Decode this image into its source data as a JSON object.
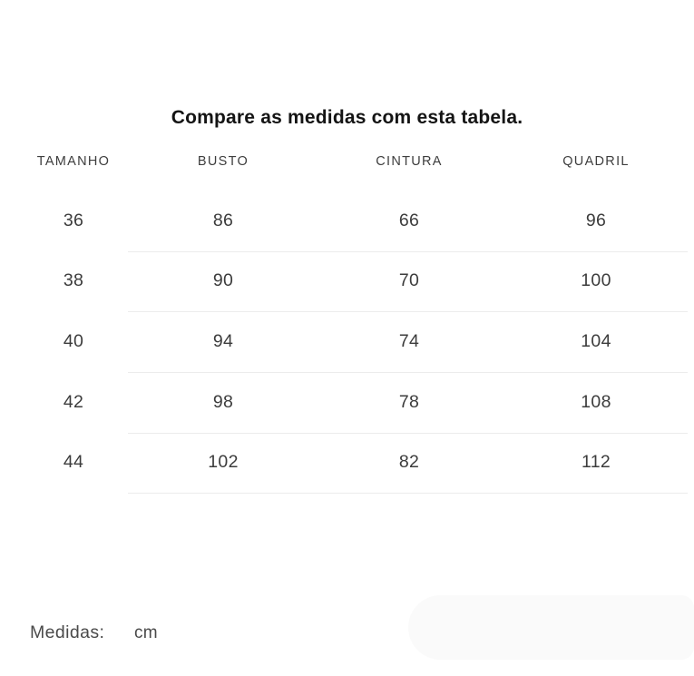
{
  "title": "Compare as medidas com esta tabela.",
  "table": {
    "headers": [
      "TAMANHO",
      "BUSTO",
      "CINTURA",
      "QUADRIL"
    ],
    "rows": [
      [
        "36",
        "86",
        "66",
        "96"
      ],
      [
        "38",
        "90",
        "70",
        "100"
      ],
      [
        "40",
        "94",
        "74",
        "104"
      ],
      [
        "42",
        "98",
        "78",
        "108"
      ],
      [
        "44",
        "102",
        "82",
        "112"
      ]
    ]
  },
  "footer": {
    "label": "Medidas:",
    "value": "cm"
  },
  "colors": {
    "background": "#ffffff",
    "title_text": "#141414",
    "header_text": "#3d3d3d",
    "cell_text": "#3c3c3c",
    "footer_text": "#4a4a4a",
    "divider": "#ececec",
    "corner_pill": "#fafafa"
  }
}
